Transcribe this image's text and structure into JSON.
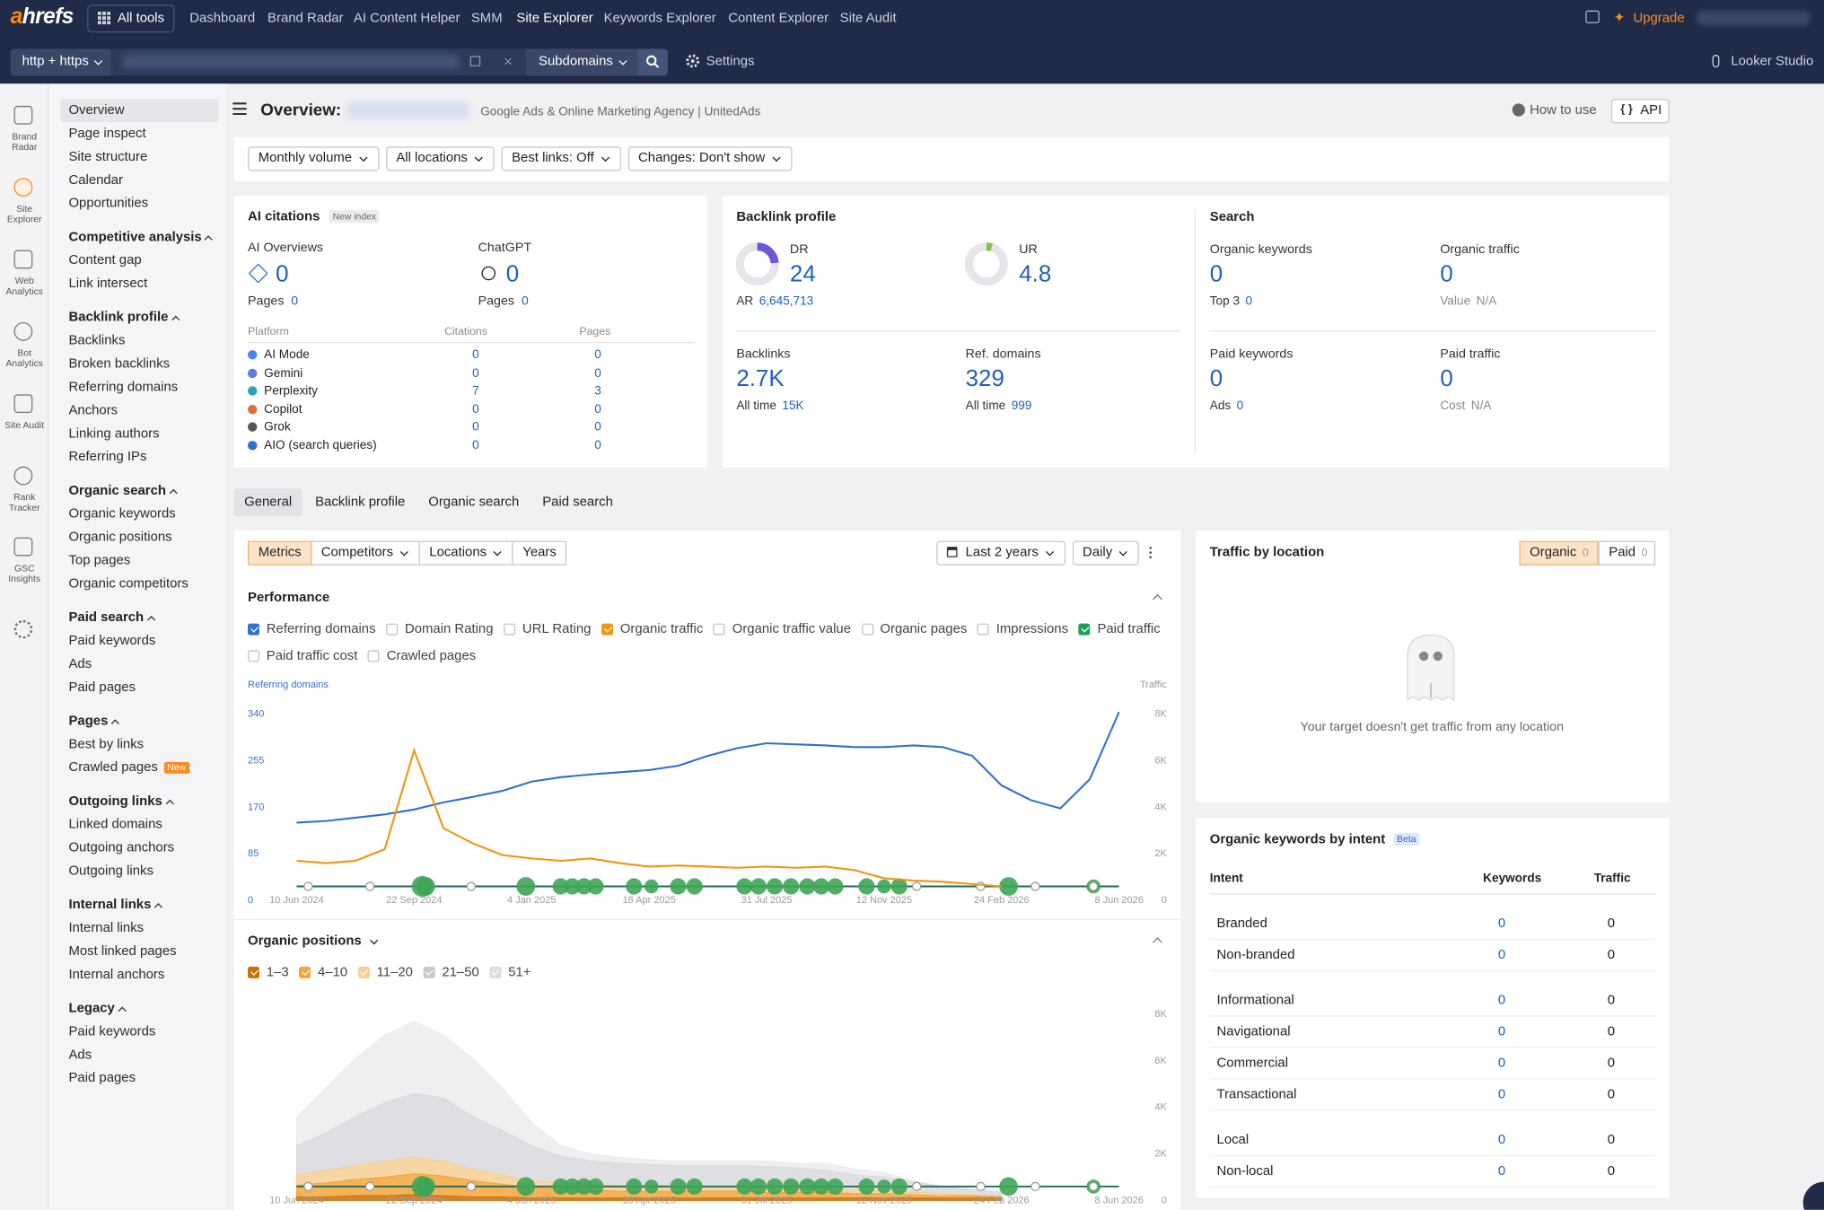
{
  "topbar": {
    "logo": "ahrefs",
    "all_tools": "All tools",
    "nav": [
      "Dashboard",
      "Brand Radar",
      "AI Content Helper",
      "SMM",
      "Site Explorer",
      "Keywords Explorer",
      "Content Explorer",
      "Site Audit"
    ],
    "upgrade": "Upgrade"
  },
  "searchbar": {
    "protocol": "http + https",
    "mode": "Subdomains",
    "settings": "Settings",
    "looker": "Looker Studio"
  },
  "rail": [
    "Brand Radar",
    "Site Explorer",
    "Web Analytics",
    "Bot Analytics",
    "Site Audit",
    "Rank Tracker",
    "GSC Insights"
  ],
  "sidebar": {
    "top": [
      "Overview",
      "Page inspect",
      "Site structure",
      "Calendar",
      "Opportunities"
    ],
    "groups": [
      {
        "title": "Competitive analysis",
        "items": [
          "Content gap",
          "Link intersect"
        ]
      },
      {
        "title": "Backlink profile",
        "items": [
          "Backlinks",
          "Broken backlinks",
          "Referring domains",
          "Anchors",
          "Linking authors",
          "Referring IPs"
        ]
      },
      {
        "title": "Organic search",
        "items": [
          "Organic keywords",
          "Organic positions",
          "Top pages",
          "Organic competitors"
        ]
      },
      {
        "title": "Paid search",
        "items": [
          "Paid keywords",
          "Ads",
          "Paid pages"
        ]
      },
      {
        "title": "Pages",
        "items": [
          "Best by links",
          {
            "label": "Crawled pages",
            "badge": "New"
          }
        ]
      },
      {
        "title": "Outgoing links",
        "items": [
          "Linked domains",
          "Outgoing anchors",
          "Outgoing links"
        ]
      },
      {
        "title": "Internal links",
        "items": [
          "Internal links",
          "Most linked pages",
          "Internal anchors"
        ]
      },
      {
        "title": "Legacy",
        "items": [
          "Paid keywords",
          "Ads",
          "Paid pages"
        ]
      }
    ]
  },
  "header": {
    "title": "Overview:",
    "subtitle": "Google Ads & Online Marketing Agency | UnitedAds",
    "how_to": "How to use",
    "api": "API"
  },
  "filters": [
    "Monthly volume",
    "All locations",
    "Best links: Off",
    "Changes: Don't show"
  ],
  "ai_citations": {
    "title": "AI citations",
    "badge": "New index",
    "summary": [
      {
        "label": "AI Overviews",
        "value": 0,
        "sub_label": "Pages",
        "sub_value": 0
      },
      {
        "label": "ChatGPT",
        "value": 0,
        "sub_label": "Pages",
        "sub_value": 0
      }
    ],
    "table": {
      "headers": [
        "Platform",
        "Citations",
        "Pages"
      ],
      "rows": [
        [
          "AI Mode",
          0,
          0
        ],
        [
          "Gemini",
          0,
          0
        ],
        [
          "Perplexity",
          7,
          3
        ],
        [
          "Copilot",
          0,
          0
        ],
        [
          "Grok",
          0,
          0
        ],
        [
          "AIO (search queries)",
          0,
          0
        ]
      ]
    }
  },
  "backlink_profile": {
    "title": "Backlink profile",
    "metrics": [
      {
        "label": "DR",
        "value": 24,
        "sub_label": "AR",
        "sub_value": "6,645,713"
      },
      {
        "label": "UR",
        "value": 4.8
      },
      {
        "label": "Backlinks",
        "value": "2.7K",
        "sub_label": "All time",
        "sub_value": "15K"
      },
      {
        "label": "Ref. domains",
        "value": 329,
        "sub_label": "All time",
        "sub_value": 999
      }
    ]
  },
  "search": {
    "title": "Search",
    "metrics": [
      {
        "label": "Organic keywords",
        "value": 0,
        "sub_label": "Top 3",
        "sub_value": 0
      },
      {
        "label": "Organic traffic",
        "value": 0,
        "sub_label": "Value",
        "sub_value": "N/A"
      },
      {
        "label": "Paid keywords",
        "value": 0,
        "sub_label": "Ads",
        "sub_value": 0
      },
      {
        "label": "Paid traffic",
        "value": 0,
        "sub_label": "Cost",
        "sub_value": "N/A"
      }
    ]
  },
  "tabs": [
    "General",
    "Backlink profile",
    "Organic search",
    "Paid search"
  ],
  "controls": {
    "segments": [
      "Metrics",
      "Competitors",
      "Locations",
      "Years"
    ],
    "range": "Last 2 years",
    "interval": "Daily"
  },
  "timeline": {
    "x": [
      "10 Jun 2024",
      "6 Jul 2024",
      "1 Aug 2024",
      "27 Aug 2024",
      "22 Sep 2024",
      "18 Oct 2024",
      "13 Nov 2024",
      "9 Dec 2024",
      "4 Jan 2025",
      "30 Jan 2025",
      "25 Feb 2025",
      "23 Mar 2025",
      "18 Apr 2025",
      "14 May 2025",
      "9 Jun 2025",
      "5 Jul 2025",
      "31 Jul 2025",
      "26 Aug 2025",
      "21 Sep 2025",
      "17 Oct 2025",
      "12 Nov 2025",
      "8 Dec 2025",
      "3 Jan 2026",
      "29 Jan 2026",
      "24 Feb 2026",
      "22 Mar 2026",
      "17 Apr 2026",
      "13 May 2026",
      "8 Jun 2026"
    ],
    "xlim": [
      "10 Jun 2024",
      "8 Jun 2026"
    ],
    "xticks": [
      "10 Jun 2024",
      "22 Sep 2024",
      "4 Jan 2025",
      "18 Apr 2025",
      "31 Jul 2025",
      "12 Nov 2025",
      "24 Feb 2026",
      "8 Jun 2026"
    ]
  },
  "performance": {
    "title": "Performance",
    "metrics": [
      {
        "name": "Referring domains",
        "checked": true,
        "color": "#2f6fd0",
        "values": [
          142,
          145,
          151,
          157,
          166,
          179,
          189,
          200,
          217,
          225,
          230,
          234,
          238,
          246,
          264,
          278,
          287,
          285,
          283,
          280,
          280,
          283,
          280,
          264,
          210,
          183,
          168,
          221,
          344
        ]
      },
      {
        "name": "Domain Rating",
        "checked": false
      },
      {
        "name": "URL Rating",
        "checked": false
      },
      {
        "name": "Organic traffic",
        "checked": true,
        "color": "#f2940f",
        "axis": "y2",
        "values": [
          1700,
          1600,
          1700,
          2200,
          6450,
          3100,
          2450,
          1950,
          1800,
          1700,
          1800,
          1600,
          1450,
          1500,
          1450,
          1400,
          1450,
          1400,
          1450,
          1300,
          950,
          850,
          800,
          700,
          600,
          null,
          null,
          null,
          null
        ]
      },
      {
        "name": "Organic traffic value",
        "checked": false
      },
      {
        "name": "Organic pages",
        "checked": false
      },
      {
        "name": "Impressions",
        "checked": false
      },
      {
        "name": "Paid traffic",
        "checked": true,
        "color": "#1e9e5a"
      },
      {
        "name": "Paid traffic cost",
        "checked": false
      },
      {
        "name": "Crawled pages",
        "checked": false
      }
    ],
    "chart": {
      "type": "line",
      "y_label": "Referring domains",
      "y2_label": "Traffic",
      "ylim": [
        0,
        340
      ],
      "yticks": [
        0,
        85,
        170,
        255,
        340
      ],
      "y2lim": [
        0,
        8000
      ],
      "y2ticks": [
        0,
        {
          "value": 2000,
          "label": "2K"
        },
        {
          "value": 4000,
          "label": "4K"
        },
        {
          "value": 6000,
          "label": "6K"
        },
        {
          "value": 8000,
          "label": "8K"
        }
      ]
    }
  },
  "positions": {
    "title": "Organic positions",
    "legend": [
      {
        "name": "1–3",
        "checked": true,
        "color": "#c9700a",
        "values": [
          150,
          150,
          200,
          200,
          250,
          200,
          150,
          150,
          100,
          100,
          100,
          100,
          100,
          100,
          100,
          100,
          100,
          100,
          100,
          100,
          100,
          100,
          100,
          100,
          100,
          null,
          null,
          null,
          null
        ]
      },
      {
        "name": "4–10",
        "checked": true,
        "color": "#f3a43a",
        "values": [
          500,
          600,
          700,
          800,
          900,
          850,
          700,
          550,
          450,
          400,
          350,
          300,
          300,
          300,
          300,
          300,
          250,
          250,
          250,
          200,
          200,
          150,
          100,
          100,
          50,
          null,
          null,
          null,
          null
        ]
      },
      {
        "name": "11–20",
        "checked": true,
        "color": "#f7cf93",
        "values": [
          450,
          550,
          600,
          700,
          700,
          650,
          500,
          400,
          300,
          250,
          250,
          250,
          250,
          200,
          200,
          200,
          200,
          200,
          150,
          150,
          100,
          100,
          100,
          50,
          50,
          null,
          null,
          null,
          null
        ]
      },
      {
        "name": "21–50",
        "checked": true,
        "color": "#d9d9de",
        "values": [
          1250,
          1600,
          2100,
          2500,
          2750,
          2700,
          2250,
          1900,
          1500,
          1150,
          1000,
          950,
          900,
          900,
          900,
          900,
          900,
          850,
          800,
          650,
          600,
          450,
          300,
          200,
          150,
          null,
          null,
          null,
          null
        ]
      },
      {
        "name": "51+",
        "checked": true,
        "color": "#ececf0",
        "values": [
          1250,
          1950,
          2500,
          2900,
          3100,
          2700,
          2500,
          1850,
          1000,
          450,
          300,
          250,
          200,
          200,
          200,
          200,
          250,
          200,
          300,
          250,
          200,
          50,
          0,
          50,
          100,
          null,
          null,
          null,
          null
        ]
      }
    ],
    "chart": {
      "type": "area",
      "stacked": true,
      "ylim": [
        0,
        8000
      ],
      "yticks": [
        0,
        {
          "value": 2000,
          "label": "2K"
        },
        {
          "value": 4000,
          "label": "4K"
        },
        {
          "value": 6000,
          "label": "6K"
        },
        {
          "value": 8000,
          "label": "8K"
        }
      ]
    }
  },
  "traffic_location": {
    "title": "Traffic by location",
    "toggle": [
      {
        "label": "Organic",
        "value": 0
      },
      {
        "label": "Paid",
        "value": 0
      }
    ],
    "message": "Your target doesn't get traffic from any location"
  },
  "intent": {
    "title": "Organic keywords by intent",
    "badge": "Beta",
    "headers": [
      "Intent",
      "Keywords",
      "Traffic"
    ],
    "groups": [
      [
        [
          "Branded",
          0,
          0
        ],
        [
          "Non-branded",
          0,
          0
        ]
      ],
      [
        [
          "Informational",
          0,
          0
        ],
        [
          "Navigational",
          0,
          0
        ],
        [
          "Commercial",
          0,
          0
        ],
        [
          "Transactional",
          0,
          0
        ]
      ],
      [
        [
          "Local",
          0,
          0
        ],
        [
          "Non-local",
          0,
          0
        ]
      ]
    ]
  }
}
